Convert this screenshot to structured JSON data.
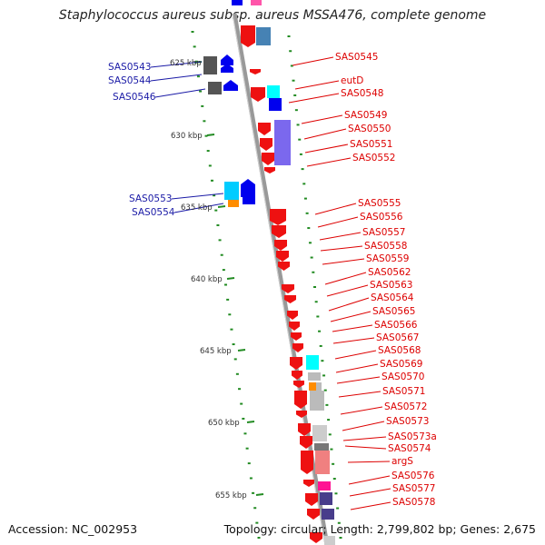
{
  "title": "Staphylococcus aureus subsp. aureus MSSA476, complete genome",
  "footer": {
    "accession": "Accession: NC_002953",
    "info": "Topology: circular; Length: 2,799,802 bp; Genes: 2,675"
  },
  "scale_labels": [
    "625 kbp",
    "630 kbp",
    "635 kbp",
    "640 kbp",
    "645 kbp",
    "650 kbp",
    "655 kbp"
  ],
  "genes_right": [
    "SAS0545",
    "eutD",
    "SAS0548",
    "SAS0549",
    "SAS0550",
    "SAS0551",
    "SAS0552",
    "SAS0555",
    "SAS0556",
    "SAS0557",
    "SAS0558",
    "SAS0559",
    "SAS0562",
    "SAS0563",
    "SAS0564",
    "SAS0565",
    "SAS0566",
    "SAS0567",
    "SAS0568",
    "SAS0569",
    "SAS0570",
    "SAS0571",
    "SAS0572",
    "SAS0573",
    "SAS0573a",
    "SAS0574",
    "argS",
    "SAS0576",
    "SAS0577",
    "SAS0578"
  ],
  "genes_left": [
    "SAS0543",
    "SAS0544",
    "SAS0546",
    "SAS0553",
    "SAS0554"
  ],
  "colors": {
    "forward_gene": "#ee1111",
    "reverse_gene": "#0000ee",
    "right_label": "#dd0000",
    "left_label": "#1a1aa6",
    "scale_tick": "#228b22",
    "backbone": "#999999"
  }
}
